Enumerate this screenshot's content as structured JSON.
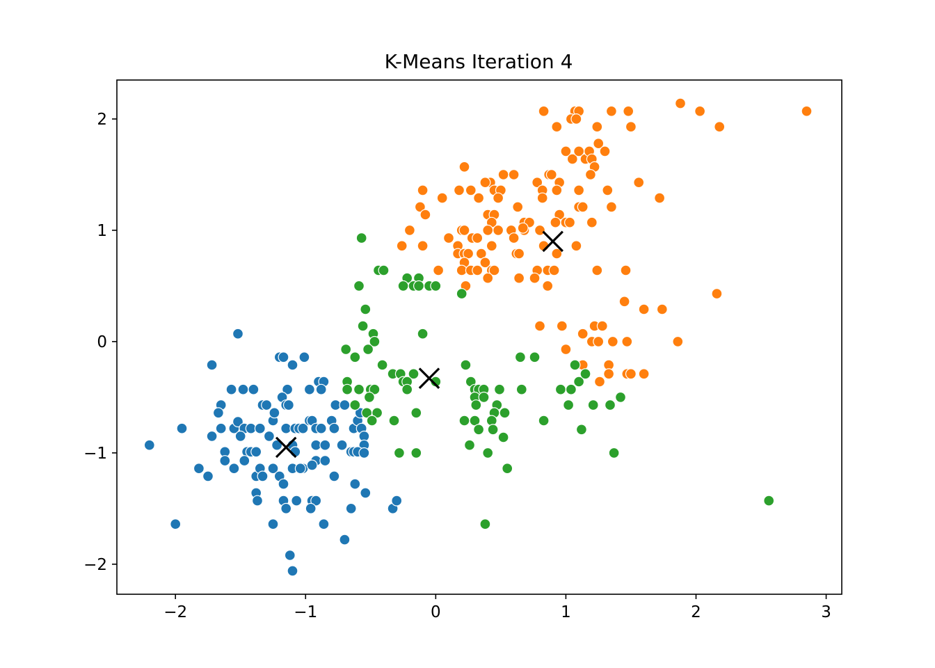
{
  "chart_data": {
    "type": "scatter",
    "title": "K-Means Iteration 4",
    "xlabel": "",
    "ylabel": "",
    "xlim": [
      -2.45,
      3.12
    ],
    "ylim": [
      -2.27,
      2.35
    ],
    "x_ticks": [
      -2,
      -1,
      0,
      1,
      2,
      3
    ],
    "y_ticks": [
      -2,
      -1,
      0,
      1,
      2
    ],
    "x_tick_labels": [
      "−2",
      "−1",
      "0",
      "1",
      "2",
      "3"
    ],
    "y_tick_labels": [
      "−2",
      "−1",
      "0",
      "1",
      "2"
    ],
    "grid": false,
    "legend": "none",
    "series": [
      {
        "color": "#1f77b4",
        "points": [
          [
            -1.52,
            0.07
          ],
          [
            -1.72,
            -0.21
          ],
          [
            -1.2,
            -0.14
          ],
          [
            -1.17,
            -0.14
          ],
          [
            -1.1,
            -0.21
          ],
          [
            -1.01,
            -0.14
          ],
          [
            -1.57,
            -0.43
          ],
          [
            -1.48,
            -0.43
          ],
          [
            -1.4,
            -0.43
          ],
          [
            -1.14,
            -0.43
          ],
          [
            -0.97,
            -0.43
          ],
          [
            -0.9,
            -0.36
          ],
          [
            -0.86,
            -0.36
          ],
          [
            -0.88,
            -0.43
          ],
          [
            -1.65,
            -0.57
          ],
          [
            -1.33,
            -0.57
          ],
          [
            -1.3,
            -0.57
          ],
          [
            -1.18,
            -0.5
          ],
          [
            -1.15,
            -0.57
          ],
          [
            -1.13,
            -0.57
          ],
          [
            -0.77,
            -0.57
          ],
          [
            -0.7,
            -0.57
          ],
          [
            -2.2,
            -0.93
          ],
          [
            -1.95,
            -0.78
          ],
          [
            -1.67,
            -0.64
          ],
          [
            -1.65,
            -0.78
          ],
          [
            -1.55,
            -0.78
          ],
          [
            -1.52,
            -0.72
          ],
          [
            -1.47,
            -0.78
          ],
          [
            -1.42,
            -0.78
          ],
          [
            -1.35,
            -0.78
          ],
          [
            -1.25,
            -0.71
          ],
          [
            -1.24,
            -0.64
          ],
          [
            -1.15,
            -0.78
          ],
          [
            -1.08,
            -0.78
          ],
          [
            -1.05,
            -0.78
          ],
          [
            -1.02,
            -0.78
          ],
          [
            -0.97,
            -0.71
          ],
          [
            -0.95,
            -0.71
          ],
          [
            -0.92,
            -0.78
          ],
          [
            -0.88,
            -0.78
          ],
          [
            -0.8,
            -0.71
          ],
          [
            -0.78,
            -0.78
          ],
          [
            -0.63,
            -0.78
          ],
          [
            -0.6,
            -0.71
          ],
          [
            -0.58,
            -0.64
          ],
          [
            -0.57,
            -0.78
          ],
          [
            -0.55,
            -0.85
          ],
          [
            -0.55,
            -0.93
          ],
          [
            -1.72,
            -0.85
          ],
          [
            -1.62,
            -0.99
          ],
          [
            -1.5,
            -0.85
          ],
          [
            -1.45,
            -0.99
          ],
          [
            -1.42,
            -0.99
          ],
          [
            -1.28,
            -0.85
          ],
          [
            -1.22,
            -0.93
          ],
          [
            -1.1,
            -0.93
          ],
          [
            -1.08,
            -0.99
          ],
          [
            -0.92,
            -0.93
          ],
          [
            -0.85,
            -0.93
          ],
          [
            -0.72,
            -0.93
          ],
          [
            -0.65,
            -0.99
          ],
          [
            -0.63,
            -0.99
          ],
          [
            -0.6,
            -0.99
          ],
          [
            -1.82,
            -1.14
          ],
          [
            -1.75,
            -1.21
          ],
          [
            -1.62,
            -1.07
          ],
          [
            -1.55,
            -1.14
          ],
          [
            -1.47,
            -1.07
          ],
          [
            -1.38,
            -1.21
          ],
          [
            -1.35,
            -1.14
          ],
          [
            -1.33,
            -1.21
          ],
          [
            -1.25,
            -1.14
          ],
          [
            -1.2,
            -1.21
          ],
          [
            -1.1,
            -1.14
          ],
          [
            -1.02,
            -1.14
          ],
          [
            -0.92,
            -1.07
          ],
          [
            -0.85,
            -1.07
          ],
          [
            -0.78,
            -1.21
          ],
          [
            -0.62,
            -1.28
          ],
          [
            -1.38,
            -1.36
          ],
          [
            -1.37,
            -1.43
          ],
          [
            -1.17,
            -1.28
          ],
          [
            -1.17,
            -1.43
          ],
          [
            -1.15,
            -1.5
          ],
          [
            -1.07,
            -1.43
          ],
          [
            -0.95,
            -1.43
          ],
          [
            -0.92,
            -1.43
          ],
          [
            -0.96,
            -1.5
          ],
          [
            -0.65,
            -1.5
          ],
          [
            -0.54,
            -1.36
          ],
          [
            -0.33,
            -1.5
          ],
          [
            -0.3,
            -1.43
          ],
          [
            -1.25,
            -1.64
          ],
          [
            -0.86,
            -1.64
          ],
          [
            -2.0,
            -1.64
          ],
          [
            -0.7,
            -1.78
          ],
          [
            -1.12,
            -1.92
          ],
          [
            -1.1,
            -2.06
          ],
          [
            -1.38,
            -0.99
          ],
          [
            -1.04,
            -1.14
          ],
          [
            -0.95,
            -1.11
          ],
          [
            -0.55,
            -1.0
          ]
        ]
      },
      {
        "color": "#ff7f0e",
        "points": [
          [
            0.83,
            2.07
          ],
          [
            1.07,
            2.07
          ],
          [
            1.1,
            2.07
          ],
          [
            1.35,
            2.07
          ],
          [
            1.48,
            2.07
          ],
          [
            1.88,
            2.14
          ],
          [
            2.03,
            2.07
          ],
          [
            2.85,
            2.07
          ],
          [
            0.93,
            1.93
          ],
          [
            1.04,
            2.0
          ],
          [
            1.08,
            2.0
          ],
          [
            1.24,
            1.93
          ],
          [
            1.5,
            1.93
          ],
          [
            2.18,
            1.93
          ],
          [
            1.0,
            1.71
          ],
          [
            1.05,
            1.64
          ],
          [
            1.1,
            1.71
          ],
          [
            1.15,
            1.64
          ],
          [
            1.18,
            1.71
          ],
          [
            1.25,
            1.78
          ],
          [
            1.3,
            1.71
          ],
          [
            1.2,
            1.64
          ],
          [
            1.22,
            1.57
          ],
          [
            1.19,
            1.5
          ],
          [
            0.22,
            1.57
          ],
          [
            0.52,
            1.5
          ],
          [
            0.6,
            1.5
          ],
          [
            0.87,
            1.5
          ],
          [
            0.89,
            1.5
          ],
          [
            0.78,
            1.43
          ],
          [
            0.95,
            1.43
          ],
          [
            1.56,
            1.43
          ],
          [
            0.42,
            1.43
          ],
          [
            0.38,
            1.43
          ],
          [
            -0.1,
            1.36
          ],
          [
            0.18,
            1.36
          ],
          [
            0.27,
            1.36
          ],
          [
            0.45,
            1.36
          ],
          [
            0.5,
            1.36
          ],
          [
            0.82,
            1.36
          ],
          [
            0.93,
            1.36
          ],
          [
            1.1,
            1.36
          ],
          [
            1.32,
            1.36
          ],
          [
            0.05,
            1.29
          ],
          [
            0.33,
            1.29
          ],
          [
            0.48,
            1.29
          ],
          [
            0.82,
            1.29
          ],
          [
            1.72,
            1.29
          ],
          [
            -0.12,
            1.21
          ],
          [
            0.63,
            1.21
          ],
          [
            1.1,
            1.21
          ],
          [
            1.13,
            1.21
          ],
          [
            1.35,
            1.21
          ],
          [
            -0.08,
            1.14
          ],
          [
            0.4,
            1.14
          ],
          [
            0.45,
            1.14
          ],
          [
            0.95,
            1.14
          ],
          [
            0.43,
            1.07
          ],
          [
            0.68,
            1.07
          ],
          [
            0.92,
            1.07
          ],
          [
            1.0,
            1.07
          ],
          [
            1.03,
            1.07
          ],
          [
            1.2,
            1.07
          ],
          [
            -0.2,
            1.0
          ],
          [
            0.2,
            1.0
          ],
          [
            0.22,
            1.0
          ],
          [
            0.4,
            1.0
          ],
          [
            0.48,
            1.0
          ],
          [
            0.58,
            1.0
          ],
          [
            0.68,
            1.0
          ],
          [
            0.8,
            1.0
          ],
          [
            0.1,
            0.93
          ],
          [
            0.28,
            0.93
          ],
          [
            0.32,
            0.93
          ],
          [
            0.6,
            0.93
          ],
          [
            -0.26,
            0.86
          ],
          [
            -0.1,
            0.86
          ],
          [
            0.17,
            0.86
          ],
          [
            0.43,
            0.86
          ],
          [
            0.83,
            0.86
          ],
          [
            1.08,
            0.86
          ],
          [
            0.17,
            0.79
          ],
          [
            0.22,
            0.79
          ],
          [
            0.25,
            0.79
          ],
          [
            0.35,
            0.79
          ],
          [
            0.62,
            0.79
          ],
          [
            0.64,
            0.79
          ],
          [
            0.93,
            0.79
          ],
          [
            0.22,
            0.71
          ],
          [
            0.38,
            0.71
          ],
          [
            0.2,
            0.64
          ],
          [
            0.27,
            0.64
          ],
          [
            0.32,
            0.64
          ],
          [
            0.43,
            0.64
          ],
          [
            0.45,
            0.64
          ],
          [
            0.78,
            0.64
          ],
          [
            0.86,
            0.64
          ],
          [
            0.91,
            0.64
          ],
          [
            1.24,
            0.64
          ],
          [
            1.46,
            0.64
          ],
          [
            0.02,
            0.64
          ],
          [
            0.4,
            0.57
          ],
          [
            0.64,
            0.57
          ],
          [
            0.76,
            0.57
          ],
          [
            0.23,
            0.5
          ],
          [
            0.86,
            0.5
          ],
          [
            1.45,
            0.36
          ],
          [
            1.6,
            0.29
          ],
          [
            1.74,
            0.29
          ],
          [
            2.16,
            0.43
          ],
          [
            0.8,
            0.14
          ],
          [
            0.97,
            0.14
          ],
          [
            1.22,
            0.14
          ],
          [
            1.28,
            0.14
          ],
          [
            1.13,
            0.07
          ],
          [
            1.2,
            0.0
          ],
          [
            1.25,
            0.0
          ],
          [
            1.36,
            0.0
          ],
          [
            1.47,
            0.0
          ],
          [
            1.86,
            0.0
          ],
          [
            1.0,
            -0.07
          ],
          [
            1.13,
            -0.21
          ],
          [
            1.33,
            -0.21
          ],
          [
            1.33,
            -0.29
          ],
          [
            1.47,
            -0.29
          ],
          [
            1.5,
            -0.29
          ],
          [
            1.6,
            -0.29
          ],
          [
            1.26,
            -0.36
          ],
          [
            0.72,
            1.07
          ],
          [
            0.67,
            1.02
          ]
        ]
      },
      {
        "color": "#2ca02c",
        "points": [
          [
            -0.57,
            0.93
          ],
          [
            -0.44,
            0.64
          ],
          [
            -0.4,
            0.64
          ],
          [
            -0.22,
            0.57
          ],
          [
            -0.13,
            0.57
          ],
          [
            -0.59,
            0.5
          ],
          [
            -0.25,
            0.5
          ],
          [
            -0.17,
            0.5
          ],
          [
            -0.13,
            0.5
          ],
          [
            -0.05,
            0.5
          ],
          [
            0.0,
            0.5
          ],
          [
            0.2,
            0.43
          ],
          [
            -0.54,
            0.29
          ],
          [
            -0.56,
            0.14
          ],
          [
            -0.48,
            0.07
          ],
          [
            -0.1,
            0.07
          ],
          [
            -0.47,
            0.0
          ],
          [
            -0.69,
            -0.07
          ],
          [
            -0.52,
            -0.07
          ],
          [
            -0.62,
            -0.14
          ],
          [
            -0.41,
            -0.21
          ],
          [
            -0.33,
            -0.29
          ],
          [
            -0.27,
            -0.29
          ],
          [
            -0.17,
            -0.29
          ],
          [
            0.23,
            -0.21
          ],
          [
            -0.68,
            -0.36
          ],
          [
            -0.25,
            -0.36
          ],
          [
            -0.22,
            -0.36
          ],
          [
            0.0,
            -0.36
          ],
          [
            0.27,
            -0.36
          ],
          [
            -0.68,
            -0.43
          ],
          [
            -0.59,
            -0.43
          ],
          [
            -0.5,
            -0.43
          ],
          [
            -0.47,
            -0.43
          ],
          [
            -0.22,
            -0.43
          ],
          [
            0.3,
            -0.43
          ],
          [
            0.33,
            -0.43
          ],
          [
            0.37,
            -0.43
          ],
          [
            0.49,
            -0.43
          ],
          [
            0.66,
            -0.43
          ],
          [
            0.96,
            -0.43
          ],
          [
            1.04,
            -0.43
          ],
          [
            -0.51,
            -0.5
          ],
          [
            0.3,
            -0.5
          ],
          [
            0.37,
            -0.5
          ],
          [
            -0.62,
            -0.57
          ],
          [
            0.31,
            -0.57
          ],
          [
            0.47,
            -0.57
          ],
          [
            -0.53,
            -0.64
          ],
          [
            -0.45,
            -0.64
          ],
          [
            -0.15,
            -0.64
          ],
          [
            0.45,
            -0.64
          ],
          [
            0.53,
            -0.64
          ],
          [
            -0.49,
            -0.71
          ],
          [
            -0.32,
            -0.71
          ],
          [
            0.22,
            -0.71
          ],
          [
            0.3,
            -0.71
          ],
          [
            0.43,
            -0.71
          ],
          [
            0.83,
            -0.71
          ],
          [
            0.33,
            -0.79
          ],
          [
            0.44,
            -0.79
          ],
          [
            1.02,
            -0.57
          ],
          [
            1.21,
            -0.57
          ],
          [
            1.34,
            -0.57
          ],
          [
            1.42,
            -0.5
          ],
          [
            1.1,
            -0.36
          ],
          [
            1.15,
            -0.29
          ],
          [
            1.07,
            -0.21
          ],
          [
            0.65,
            -0.14
          ],
          [
            0.76,
            -0.14
          ],
          [
            0.52,
            -0.86
          ],
          [
            1.12,
            -0.79
          ],
          [
            0.26,
            -0.93
          ],
          [
            -0.28,
            -1.0
          ],
          [
            -0.15,
            -1.0
          ],
          [
            0.4,
            -1.0
          ],
          [
            1.37,
            -1.0
          ],
          [
            0.55,
            -1.14
          ],
          [
            0.38,
            -1.64
          ],
          [
            2.56,
            -1.43
          ]
        ]
      }
    ],
    "centroids": [
      [
        -1.15,
        -0.95
      ],
      [
        0.9,
        0.9
      ],
      [
        -0.05,
        -0.33
      ]
    ]
  }
}
